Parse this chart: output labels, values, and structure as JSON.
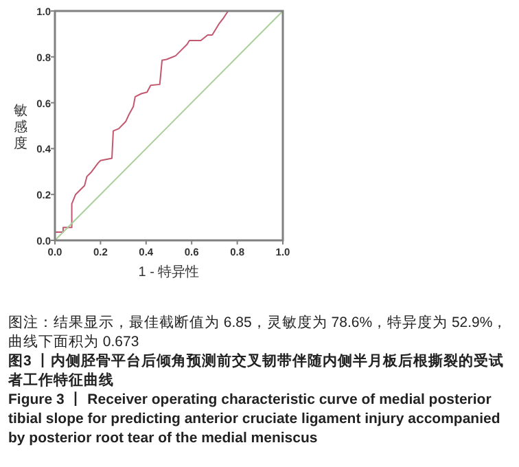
{
  "chart_data": {
    "type": "line",
    "xlabel": "1 - 特异性",
    "ylabel": "敏感度",
    "xlim": [
      0,
      1
    ],
    "ylim": [
      0,
      1
    ],
    "xticks": [
      "0.0",
      0.2,
      0.4,
      0.6,
      0.8,
      "1.0"
    ],
    "yticks": [
      "0.0",
      0.2,
      0.4,
      0.6,
      0.8,
      "1.0"
    ],
    "series": [
      {
        "color": "#c2576e",
        "x": [
          0,
          0,
          0.036,
          0.036,
          0.074,
          0.074,
          0.09,
          0.13,
          0.14,
          0.16,
          0.19,
          0.2,
          0.25,
          0.256,
          0.28,
          0.31,
          0.326,
          0.344,
          0.352,
          0.38,
          0.404,
          0.42,
          0.46,
          0.47,
          0.49,
          0.53,
          0.56,
          0.58,
          0.59,
          0.64,
          0.67,
          0.69,
          0.72,
          0.74,
          0.76,
          1
        ],
        "values": [
          0,
          0.036,
          0.036,
          0.056,
          0.056,
          0.159,
          0.199,
          0.239,
          0.278,
          0.298,
          0.338,
          0.348,
          0.358,
          0.477,
          0.487,
          0.517,
          0.551,
          0.583,
          0.626,
          0.64,
          0.646,
          0.676,
          0.68,
          0.785,
          0.789,
          0.805,
          0.835,
          0.855,
          0.871,
          0.871,
          0.895,
          0.895,
          0.944,
          0.97,
          1,
          1
        ]
      },
      {
        "color": "#a9cf9b",
        "x": [
          0,
          1
        ],
        "values": [
          0,
          1
        ]
      }
    ],
    "annotations": [
      "图注：结果显示，最佳截断值为 6.85，灵敏度为 78.6%，特异度为 52.9%，曲线下面积为 0.673",
      "图3 丨内侧胫骨平台后倾角预测前交叉韧带伴随内侧半月板后根撕裂的受试者工作特征曲线",
      "Figure 3 丨 Receiver operating characteristic curve of medial posterior tibial slope for predicting anterior cruciate ligament injury accompanied by posterior root tear of the medial meniscus"
    ]
  }
}
